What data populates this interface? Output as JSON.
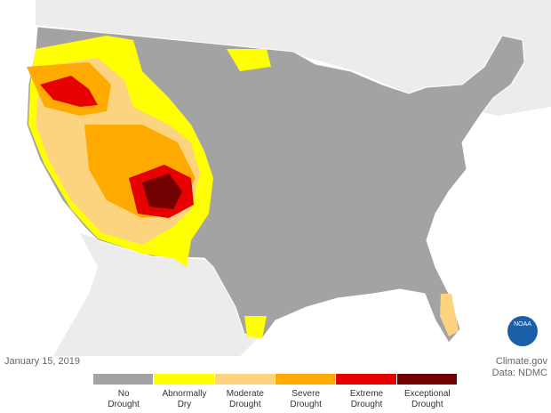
{
  "date": "January 15, 2019",
  "credits": [
    "Climate.gov",
    "Data: NDMC"
  ],
  "logo": "NOAA",
  "legend": [
    {
      "label": "No Drought",
      "color": "#a3a3a3"
    },
    {
      "label": "Abnormally Dry",
      "color": "#ffff00"
    },
    {
      "label": "Moderate Drought",
      "color": "#fcd37f"
    },
    {
      "label": "Severe Drought",
      "color": "#ffaa00"
    },
    {
      "label": "Extreme Drought",
      "color": "#e60000"
    },
    {
      "label": "Exceptional Drought",
      "color": "#730000"
    }
  ]
}
